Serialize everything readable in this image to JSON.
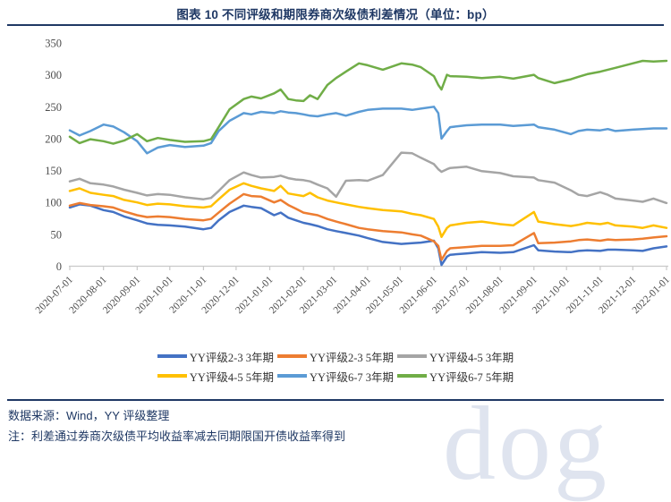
{
  "title": "图表 10 不同评级和期限券商次级债利差情况（单位：bp）",
  "footer": {
    "source": "数据来源：Wind，YY 评级整理",
    "note": "注：利差通过券商次级债平均收益率减去同期限国开债收益率得到"
  },
  "watermark_text": "dog",
  "colors": {
    "title_navy": "#1f3864",
    "axis_gray": "#c9c9c9",
    "tick_label_gray": "#4d4d4d"
  },
  "chart_data": {
    "type": "line",
    "title": "图表 10 不同评级和期限券商次级债利差情况（单位：bp）",
    "xlabel": "",
    "ylabel": "",
    "ylim": [
      0,
      350
    ],
    "yticks": [
      0,
      50,
      100,
      150,
      200,
      250,
      300,
      350
    ],
    "grid": false,
    "legend_position": "bottom",
    "xticks": [
      "2020-07-01",
      "2020-08-01",
      "2020-09-01",
      "2020-10-01",
      "2020-11-01",
      "2020-12-01",
      "2021-01-01",
      "2021-02-01",
      "2021-03-01",
      "2021-04-01",
      "2021-05-01",
      "2021-06-01",
      "2021-07-01",
      "2021-08-01",
      "2021-09-01",
      "2021-10-01",
      "2021-11-01",
      "2021-12-01",
      "2022-01-01"
    ],
    "x": [
      "2020-07-01",
      "2020-07-10",
      "2020-07-20",
      "2020-08-01",
      "2020-08-10",
      "2020-08-20",
      "2020-09-01",
      "2020-09-10",
      "2020-09-20",
      "2020-10-01",
      "2020-10-15",
      "2020-11-01",
      "2020-11-08",
      "2020-11-15",
      "2020-11-25",
      "2020-12-08",
      "2020-12-15",
      "2020-12-24",
      "2021-01-05",
      "2021-01-11",
      "2021-01-18",
      "2021-01-25",
      "2021-02-01",
      "2021-02-07",
      "2021-02-14",
      "2021-02-23",
      "2021-03-03",
      "2021-03-12",
      "2021-03-24",
      "2021-04-01",
      "2021-04-15",
      "2021-05-02",
      "2021-05-12",
      "2021-05-20",
      "2021-06-01",
      "2021-06-05",
      "2021-06-08",
      "2021-06-13",
      "2021-06-16",
      "2021-07-01",
      "2021-07-15",
      "2021-08-01",
      "2021-08-13",
      "2021-09-01",
      "2021-09-05",
      "2021-09-20",
      "2021-10-05",
      "2021-10-12",
      "2021-10-20",
      "2021-11-01",
      "2021-11-08",
      "2021-11-15",
      "2021-12-01",
      "2021-12-10",
      "2021-12-20",
      "2022-01-01"
    ],
    "series": [
      {
        "id": "yy-2-3-3y",
        "name": "YY评级2-3 3年期",
        "color": "#4472C4",
        "values": [
          92,
          97,
          95,
          88,
          85,
          78,
          72,
          67,
          65,
          64,
          62,
          58,
          60,
          72,
          85,
          95,
          93,
          91,
          80,
          84,
          76,
          72,
          68,
          66,
          63,
          58,
          55,
          52,
          48,
          44,
          38,
          35,
          36,
          37,
          40,
          28,
          2,
          15,
          18,
          20,
          22,
          21,
          22,
          33,
          25,
          23,
          22,
          24,
          25,
          24,
          26,
          26,
          25,
          24,
          28,
          31
        ]
      },
      {
        "id": "yy-2-3-5y",
        "name": "YY评级2-3 5年期",
        "color": "#ED7D31",
        "values": [
          95,
          99,
          96,
          94,
          92,
          86,
          80,
          77,
          78,
          77,
          74,
          72,
          74,
          84,
          98,
          113,
          110,
          109,
          100,
          104,
          96,
          90,
          84,
          82,
          80,
          74,
          70,
          66,
          60,
          58,
          55,
          53,
          50,
          48,
          39,
          32,
          10,
          24,
          28,
          30,
          32,
          32,
          33,
          52,
          36,
          37,
          39,
          41,
          42,
          40,
          42,
          41,
          42,
          43,
          45,
          47
        ]
      },
      {
        "id": "yy-4-5-3y",
        "name": "YY评级4-5 3年期",
        "color": "#A5A5A5",
        "values": [
          133,
          137,
          130,
          128,
          125,
          120,
          115,
          111,
          113,
          112,
          108,
          105,
          107,
          118,
          135,
          147,
          143,
          139,
          140,
          142,
          138,
          136,
          135,
          133,
          128,
          122,
          109,
          134,
          135,
          134,
          143,
          178,
          177,
          170,
          160,
          152,
          148,
          152,
          154,
          156,
          149,
          146,
          141,
          139,
          135,
          131,
          119,
          112,
          110,
          116,
          112,
          106,
          103,
          101,
          106,
          99
        ]
      },
      {
        "id": "yy-4-5-5y",
        "name": "YY评级4-5 5年期",
        "color": "#FFC000",
        "values": [
          118,
          122,
          115,
          112,
          110,
          104,
          100,
          96,
          98,
          97,
          94,
          92,
          94,
          105,
          120,
          130,
          126,
          122,
          118,
          126,
          114,
          112,
          110,
          115,
          108,
          103,
          100,
          97,
          93,
          91,
          88,
          86,
          82,
          80,
          74,
          62,
          46,
          60,
          64,
          68,
          70,
          66,
          64,
          85,
          70,
          66,
          63,
          65,
          68,
          66,
          68,
          64,
          62,
          60,
          64,
          60
        ]
      },
      {
        "id": "yy-6-7-3y",
        "name": "YY评级6-7 3年期",
        "color": "#5B9BD5",
        "values": [
          213,
          205,
          212,
          222,
          219,
          210,
          196,
          177,
          186,
          190,
          187,
          189,
          193,
          212,
          228,
          240,
          238,
          242,
          240,
          243,
          241,
          240,
          238,
          236,
          235,
          238,
          240,
          236,
          242,
          245,
          247,
          247,
          245,
          247,
          250,
          240,
          200,
          212,
          218,
          221,
          222,
          222,
          220,
          222,
          218,
          214,
          207,
          212,
          214,
          213,
          215,
          212,
          214,
          215,
          216,
          216
        ]
      },
      {
        "id": "yy-6-7-5y",
        "name": "YY评级6-7 5年期",
        "color": "#70AD47",
        "values": [
          203,
          193,
          199,
          196,
          192,
          197,
          207,
          196,
          201,
          198,
          195,
          196,
          199,
          218,
          246,
          262,
          266,
          263,
          271,
          277,
          262,
          260,
          259,
          268,
          262,
          284,
          295,
          305,
          318,
          315,
          308,
          318,
          316,
          312,
          298,
          284,
          277,
          300,
          298,
          297,
          295,
          297,
          294,
          300,
          295,
          287,
          293,
          297,
          301,
          305,
          308,
          311,
          318,
          322,
          321,
          322
        ]
      }
    ]
  }
}
